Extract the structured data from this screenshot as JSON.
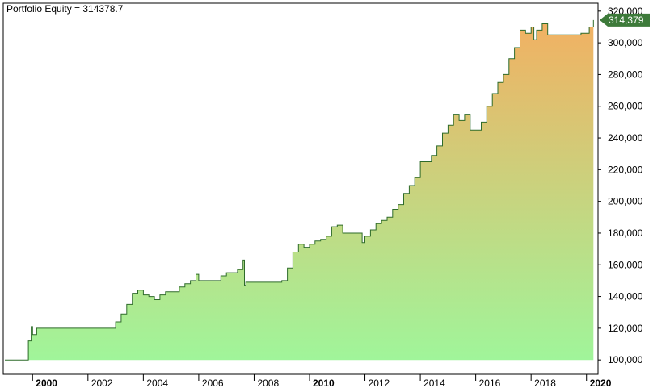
{
  "chart_data": {
    "type": "area",
    "title": "Portfolio Equity = 314378.7",
    "ylim": [
      95000,
      325000
    ],
    "xlim": [
      1999.0,
      2020.3
    ],
    "grid": false,
    "y_ticks": [
      "100,000",
      "120,000",
      "140,000",
      "160,000",
      "180,000",
      "200,000",
      "220,000",
      "240,000",
      "260,000",
      "280,000",
      "300,000",
      "320,000"
    ],
    "y_tick_values": [
      100000,
      120000,
      140000,
      160000,
      180000,
      200000,
      220000,
      240000,
      260000,
      280000,
      300000,
      320000
    ],
    "x_ticks": [
      "2000",
      "2002",
      "2004",
      "2006",
      "2008",
      "2010",
      "2012",
      "2014",
      "2016",
      "2018",
      "2020"
    ],
    "x_tick_values": [
      2000,
      2002,
      2004,
      2006,
      2008,
      2010,
      2012,
      2014,
      2016,
      2018,
      2020
    ],
    "bold_x_ticks": [
      "2000",
      "2010",
      "2020"
    ],
    "last_value_label": "314,379",
    "colors": {
      "line": "#2e6b2a",
      "fill_top": "#f2b062",
      "fill_bottom": "#a0f59a",
      "label_bg": "#3d7a3a",
      "label_text": "#ffffff"
    },
    "series": [
      {
        "x": [
          1999.0,
          1999.8,
          1999.85,
          1999.95,
          2000.0,
          2000.05,
          2000.15,
          2002.7,
          2002.75,
          2003.0,
          2003.2,
          2003.4,
          2003.6,
          2003.8,
          2004.0,
          2004.2,
          2004.4,
          2004.6,
          2004.8,
          2005.0,
          2005.3,
          2005.5,
          2005.7,
          2005.9,
          2006.0,
          2006.5,
          2006.8,
          2007.0,
          2007.2,
          2007.4,
          2007.6,
          2007.65,
          2007.7,
          2008.9,
          2008.95,
          2009.0,
          2009.2,
          2009.4,
          2009.6,
          2009.8,
          2010.0,
          2010.2,
          2010.4,
          2010.6,
          2010.8,
          2011.0,
          2011.2,
          2011.4,
          2011.6,
          2011.8,
          2011.9,
          2012.0,
          2012.2,
          2012.4,
          2012.6,
          2012.8,
          2013.0,
          2013.2,
          2013.4,
          2013.6,
          2013.8,
          2014.0,
          2014.2,
          2014.4,
          2014.6,
          2014.8,
          2015.0,
          2015.2,
          2015.4,
          2015.6,
          2015.8,
          2016.0,
          2016.2,
          2016.4,
          2016.6,
          2016.8,
          2017.0,
          2017.2,
          2017.4,
          2017.6,
          2017.8,
          2018.0,
          2018.1,
          2018.2,
          2018.4,
          2018.6,
          2018.8,
          2019.0,
          2019.2,
          2019.4,
          2019.6,
          2019.8,
          2020.0,
          2020.1,
          2020.25
        ],
        "y": [
          100000,
          100000,
          112000,
          121000,
          116000,
          116000,
          120000,
          120000,
          120000,
          124000,
          129000,
          135000,
          142000,
          144000,
          141000,
          140000,
          138000,
          141000,
          143000,
          143000,
          146000,
          148000,
          150000,
          154000,
          150000,
          150000,
          153000,
          155000,
          155000,
          157000,
          163000,
          147000,
          149000,
          149000,
          149000,
          150000,
          158000,
          168000,
          173000,
          171000,
          173000,
          175000,
          176000,
          178000,
          184000,
          185000,
          180000,
          180000,
          180000,
          180000,
          174000,
          178000,
          182000,
          186000,
          188000,
          190000,
          195000,
          198000,
          205000,
          210000,
          215000,
          225000,
          225000,
          229000,
          235000,
          243000,
          248000,
          255000,
          251000,
          255000,
          245000,
          245000,
          250000,
          260000,
          268000,
          275000,
          280000,
          290000,
          297000,
          308000,
          306000,
          310000,
          302000,
          308000,
          312000,
          305000,
          305000,
          305000,
          305000,
          305000,
          305000,
          306000,
          306000,
          310000,
          314379
        ]
      }
    ]
  }
}
